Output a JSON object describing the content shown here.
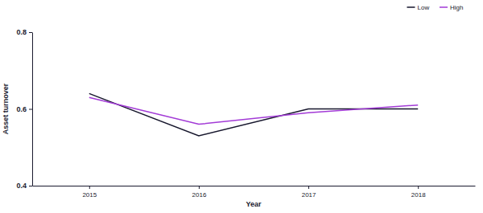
{
  "chart_data": {
    "type": "line",
    "x_label": "Year",
    "y_label": "Asset turnover",
    "categories": [
      "2015",
      "2016",
      "2017",
      "2018"
    ],
    "series": [
      {
        "name": "Low",
        "color": "#16162c",
        "values": [
          0.64,
          0.53,
          0.6,
          0.6
        ]
      },
      {
        "name": "High",
        "color": "#a23ad6",
        "values": [
          0.63,
          0.56,
          0.59,
          0.61
        ]
      }
    ],
    "ylim": [
      0.4,
      0.8
    ],
    "yticks": [
      0.4,
      0.6,
      0.8
    ],
    "grid": false,
    "legend": "top-right"
  }
}
